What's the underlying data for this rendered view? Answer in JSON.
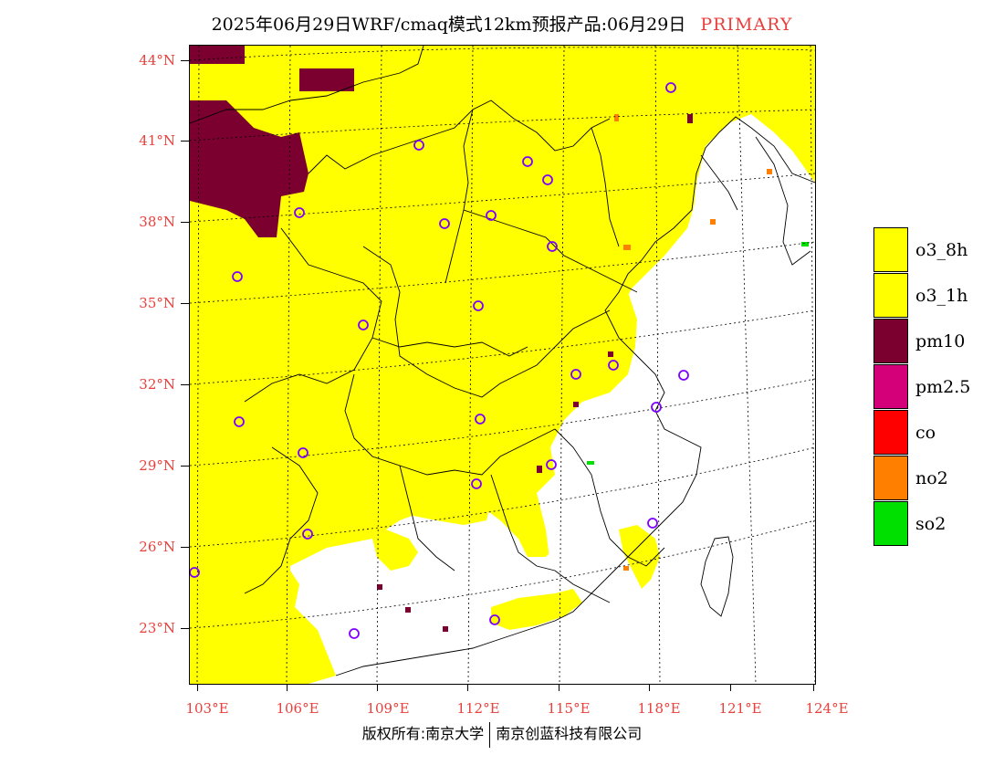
{
  "header": {
    "title": "2025年06月29日WRF/cmaq模式12km预报产品:06月29日",
    "tag": "PRIMARY"
  },
  "axes": {
    "lat_labels": [
      "44°N",
      "41°N",
      "38°N",
      "35°N",
      "32°N",
      "29°N",
      "26°N",
      "23°N"
    ],
    "lon_labels": [
      "103°E",
      "106°E",
      "109°E",
      "112°E",
      "115°E",
      "118°E",
      "121°E",
      "124°E"
    ]
  },
  "legend": {
    "items": [
      {
        "label": "o3_8h",
        "color": "#ffff00"
      },
      {
        "label": "o3_1h",
        "color": "#ffff00"
      },
      {
        "label": "pm10",
        "color": "#7b0030"
      },
      {
        "label": "pm2.5",
        "color": "#d4007a"
      },
      {
        "label": "co",
        "color": "#ff0000"
      },
      {
        "label": "no2",
        "color": "#ff7f00"
      },
      {
        "label": "so2",
        "color": "#00e000"
      }
    ]
  },
  "footer": {
    "left": "版权所有:南京大学",
    "right": "南京创蓝科技有限公司"
  }
}
